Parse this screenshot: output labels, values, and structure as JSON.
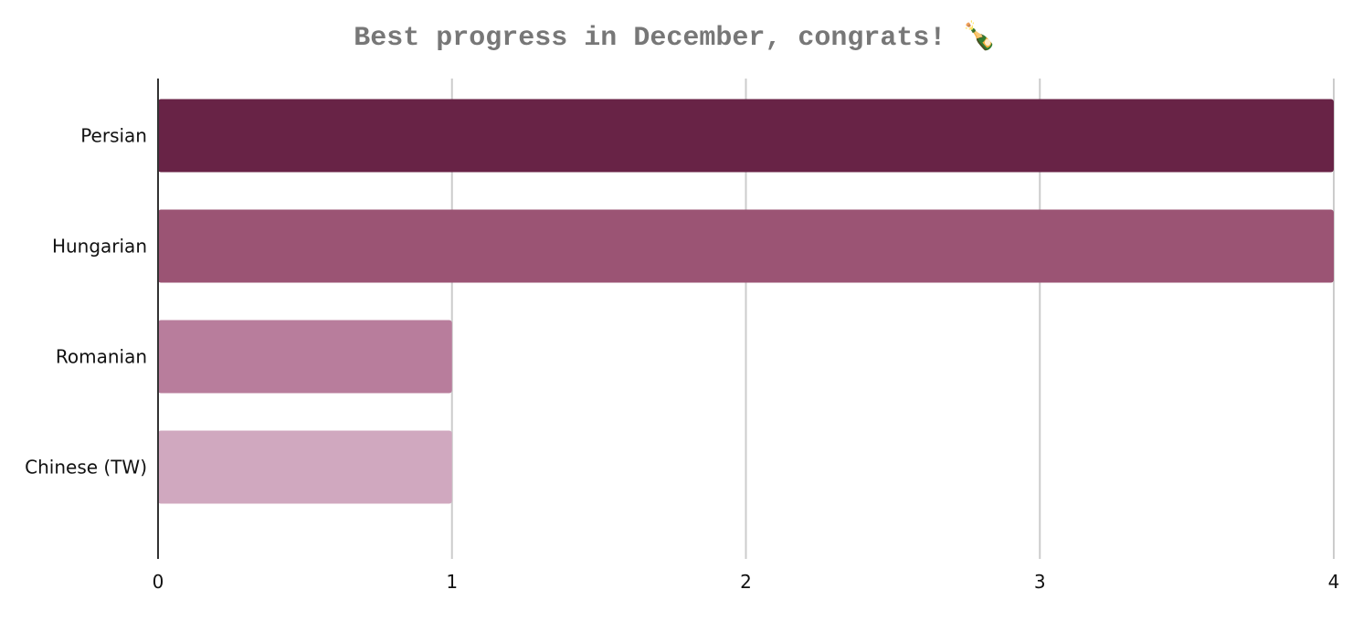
{
  "chart_data": {
    "type": "bar",
    "orientation": "horizontal",
    "title": "Best progress in December, congrats! 🍾",
    "categories": [
      "Persian",
      "Hungarian",
      "Romanian",
      "Chinese (TW)"
    ],
    "values": [
      4,
      4,
      1,
      1
    ],
    "colors": [
      "#682346",
      "#9b5474",
      "#b87d9c",
      "#d0a8bf"
    ],
    "xlim": [
      0,
      4
    ],
    "xticks": [
      "0",
      "1",
      "2",
      "3",
      "4"
    ],
    "xlabel": "",
    "ylabel": "",
    "grid": true,
    "legend": "none"
  }
}
